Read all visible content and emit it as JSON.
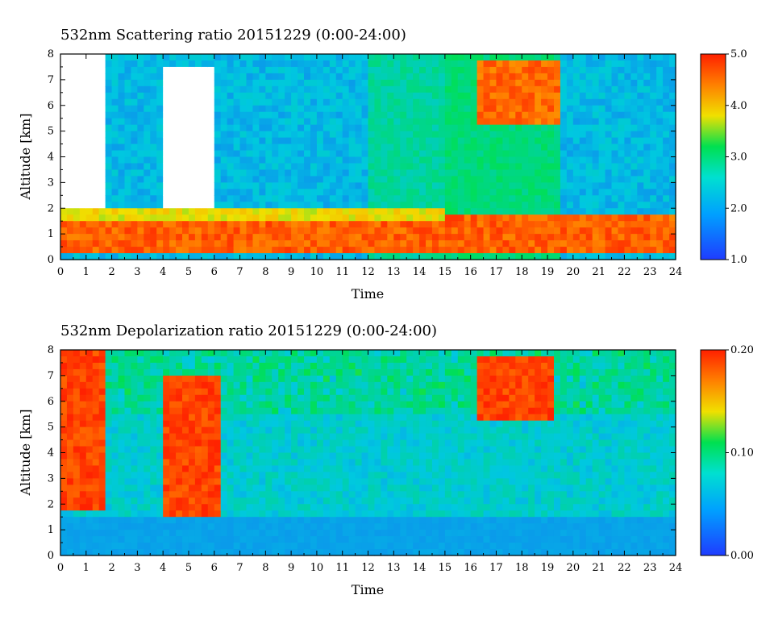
{
  "chart_data": [
    {
      "type": "heatmap",
      "title": "532nm Scattering ratio  20151229 (0:00-24:00)",
      "xlabel": "Time",
      "ylabel": "Altitude [km]",
      "xlim": [
        0,
        24
      ],
      "ylim": [
        0,
        8
      ],
      "x_ticks": [
        "0",
        "1",
        "2",
        "3",
        "4",
        "5",
        "6",
        "7",
        "8",
        "9",
        "10",
        "11",
        "12",
        "13",
        "14",
        "15",
        "16",
        "17",
        "18",
        "19",
        "20",
        "21",
        "22",
        "23",
        "24"
      ],
      "y_ticks": [
        "0",
        "1",
        "2",
        "3",
        "4",
        "5",
        "6",
        "7",
        "8"
      ],
      "colorbar": {
        "range": [
          1.0,
          5.0
        ],
        "ticks": [
          "1.0",
          "2.0",
          "3.0",
          "4.0",
          "5.0"
        ],
        "colors": [
          "#1f3cff",
          "#00c8e0",
          "#00e050",
          "#f0e000",
          "#ff8000",
          "#ff2000"
        ]
      },
      "features": [
        {
          "kind": "boundary_layer",
          "x": [
            0,
            24
          ],
          "y": [
            0.3,
            1.8
          ],
          "value": 4.6
        },
        {
          "kind": "cloud_base_layer",
          "x": [
            0,
            15
          ],
          "y": [
            1.4,
            1.9
          ],
          "value": 3.5
        },
        {
          "kind": "high_cloud",
          "x": [
            16.2,
            19.4
          ],
          "y": [
            5.2,
            7.8
          ],
          "value": 4.5
        },
        {
          "kind": "saturated_gap",
          "x": [
            0,
            1.7
          ],
          "y": [
            1.9,
            8
          ]
        },
        {
          "kind": "saturated_gap",
          "x": [
            4.1,
            5.9
          ],
          "y": [
            1.9,
            7.6
          ]
        }
      ]
    },
    {
      "type": "heatmap",
      "title": "532nm Depolarization ratio  20151229 (0:00-24:00)",
      "xlabel": "Time",
      "ylabel": "Altitude [km]",
      "xlim": [
        0,
        24
      ],
      "ylim": [
        0,
        8
      ],
      "x_ticks": [
        "0",
        "1",
        "2",
        "3",
        "4",
        "5",
        "6",
        "7",
        "8",
        "9",
        "10",
        "11",
        "12",
        "13",
        "14",
        "15",
        "16",
        "17",
        "18",
        "19",
        "20",
        "21",
        "22",
        "23",
        "24"
      ],
      "y_ticks": [
        "0",
        "1",
        "2",
        "3",
        "4",
        "5",
        "6",
        "7",
        "8"
      ],
      "colorbar": {
        "range": [
          0.0,
          0.2
        ],
        "ticks": [
          "0.00",
          "0.10",
          "0.20"
        ],
        "colors": [
          "#1f3cff",
          "#00c8e0",
          "#00e050",
          "#f0e000",
          "#ff8000",
          "#ff2000"
        ]
      },
      "features": [
        {
          "kind": "boundary_layer",
          "x": [
            0,
            24
          ],
          "y": [
            0,
            1.5
          ],
          "value": 0.03
        },
        {
          "kind": "ice_cloud",
          "x": [
            0,
            1.7
          ],
          "y": [
            1.8,
            8
          ],
          "value": 0.19
        },
        {
          "kind": "ice_cloud",
          "x": [
            4.1,
            6.2
          ],
          "y": [
            1.6,
            7.0
          ],
          "value": 0.19
        },
        {
          "kind": "high_cloud",
          "x": [
            16.2,
            19.2
          ],
          "y": [
            5.2,
            7.8
          ],
          "value": 0.19
        }
      ]
    }
  ]
}
